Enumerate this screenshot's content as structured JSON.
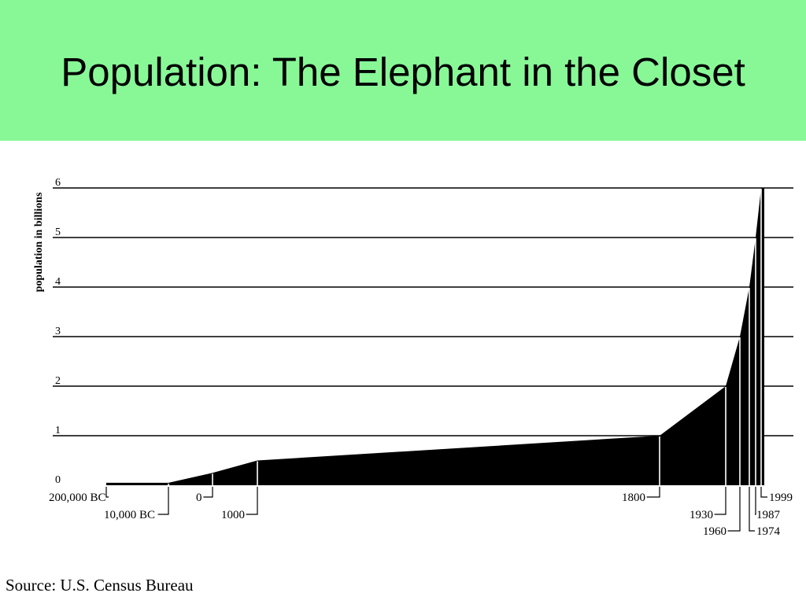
{
  "slide": {
    "title": "Population: The Elephant in the Closet",
    "source": "Source: U.S. Census Bureau",
    "banner_color": "#88F897"
  },
  "chart_data": {
    "type": "area",
    "ylabel": "population in billions",
    "ylim": [
      0,
      6
    ],
    "grid": true,
    "y_ticks": [
      0,
      1,
      2,
      3,
      4,
      5,
      6
    ],
    "fill_color": "#000000",
    "series": [
      {
        "points": [
          {
            "label": "200,000 BC",
            "y": 0.05
          },
          {
            "label": "10,000 BC",
            "y": 0.05
          },
          {
            "label": "0",
            "y": 0.25
          },
          {
            "label": "1000",
            "y": 0.5
          },
          {
            "label": "1800",
            "y": 1.0
          },
          {
            "label": "1930",
            "y": 2.0
          },
          {
            "label": "1960",
            "y": 3.0
          },
          {
            "label": "1974",
            "y": 4.0
          },
          {
            "label": "1987",
            "y": 5.0
          },
          {
            "label": "1999",
            "y": 6.0
          }
        ]
      }
    ]
  }
}
